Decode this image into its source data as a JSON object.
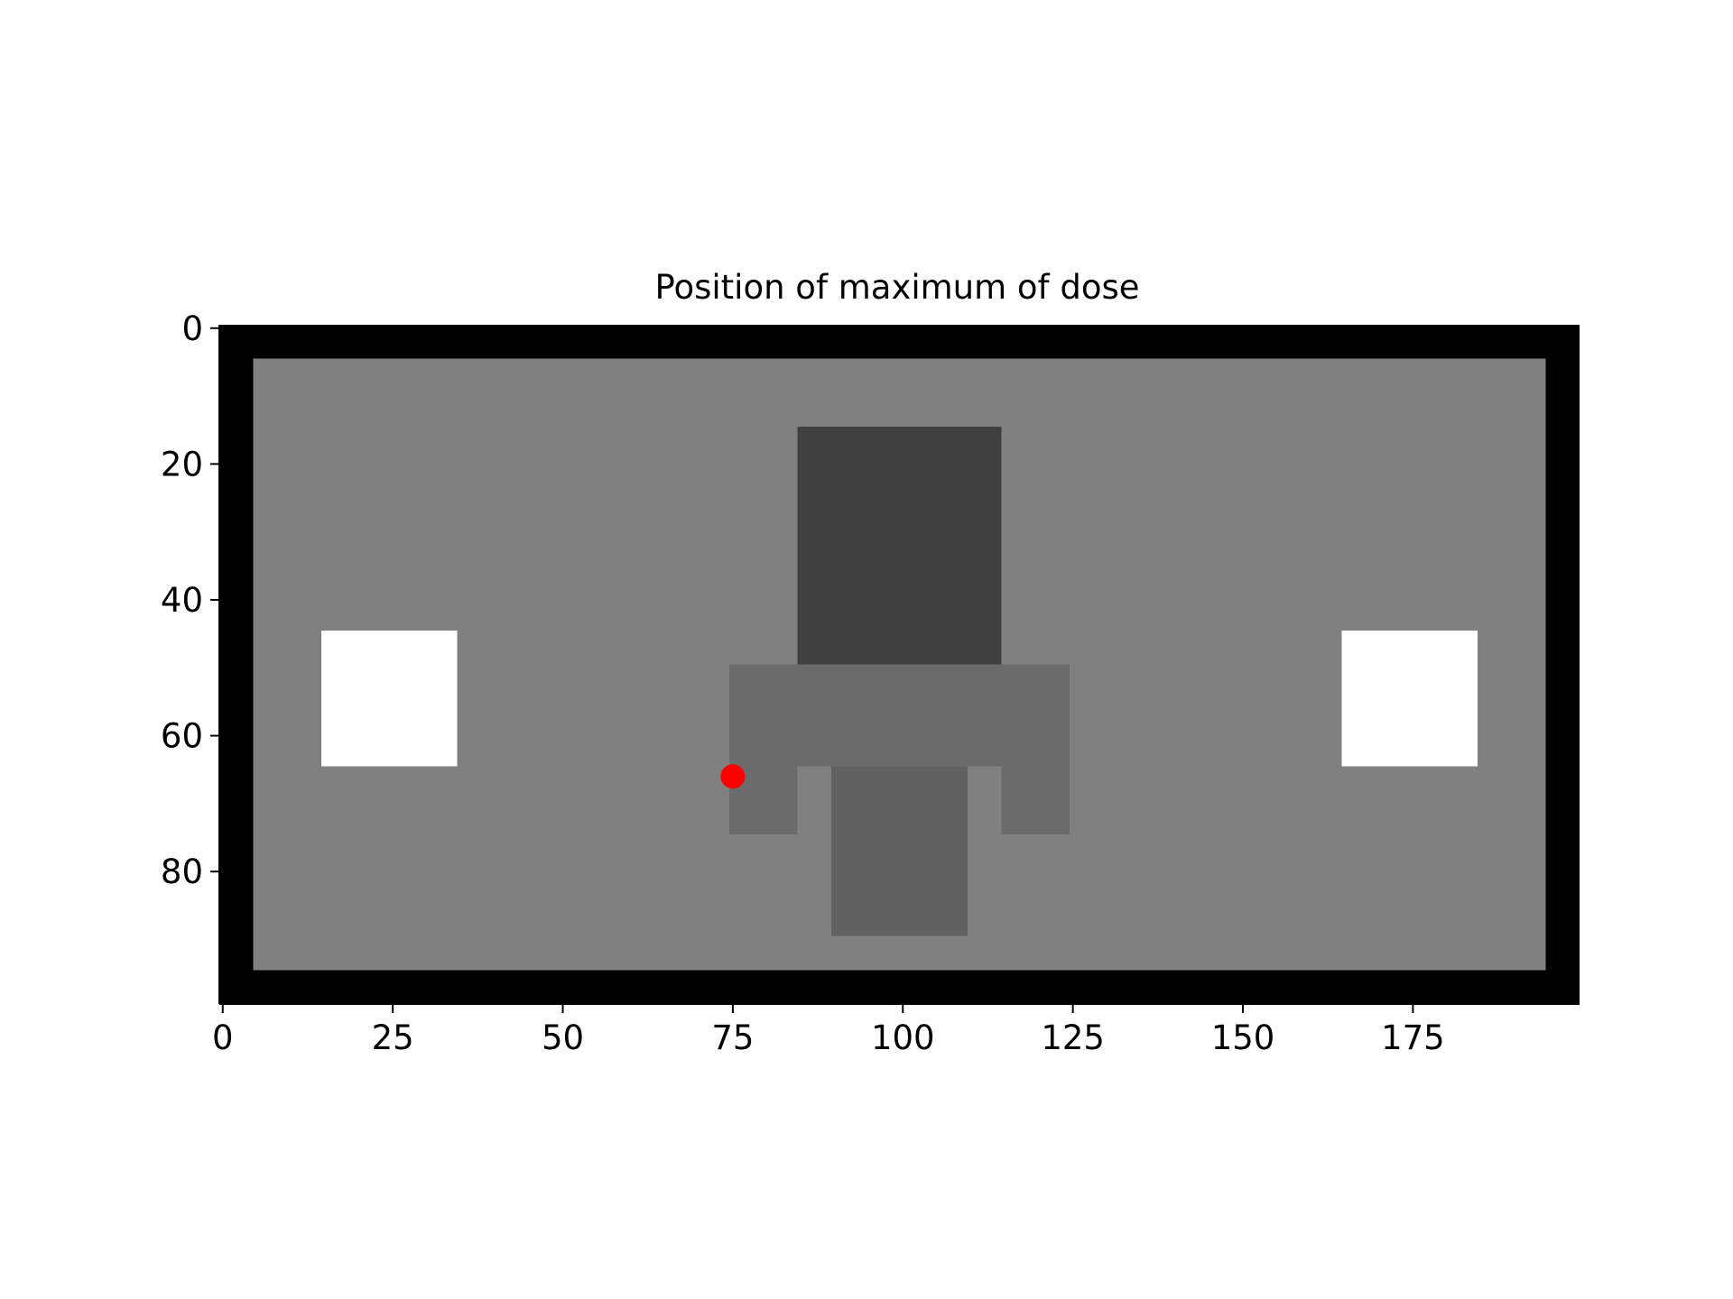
{
  "chart_data": {
    "type": "heatmap",
    "title": "Position of maximum of dose",
    "xlabel": "",
    "ylabel": "",
    "grid": false,
    "xlim": [
      -0.5,
      199.5
    ],
    "ylim": [
      99.5,
      -0.5
    ],
    "y_inverted": true,
    "x_ticks": [
      0,
      25,
      50,
      75,
      100,
      125,
      150,
      175
    ],
    "y_ticks": [
      0,
      20,
      40,
      60,
      80
    ],
    "colormap": "gray",
    "regions": [
      {
        "name": "border",
        "x0": 0,
        "x1": 199,
        "y0": 0,
        "y1": 99,
        "level": 0.0
      },
      {
        "name": "body",
        "x0": 5,
        "x1": 194,
        "y0": 5,
        "y1": 94,
        "level": 0.5
      },
      {
        "name": "upper-block",
        "x0": 85,
        "x1": 114,
        "y0": 15,
        "y1": 49,
        "level": 0.25
      },
      {
        "name": "middle-bar",
        "x0": 75,
        "x1": 124,
        "y0": 50,
        "y1": 64,
        "level": 0.42
      },
      {
        "name": "left-leg",
        "x0": 75,
        "x1": 84,
        "y0": 65,
        "y1": 74,
        "level": 0.42
      },
      {
        "name": "right-leg",
        "x0": 115,
        "x1": 124,
        "y0": 65,
        "y1": 74,
        "level": 0.42
      },
      {
        "name": "lower-block",
        "x0": 90,
        "x1": 109,
        "y0": 65,
        "y1": 89,
        "level": 0.38
      },
      {
        "name": "left-insert",
        "x0": 15,
        "x1": 34,
        "y0": 45,
        "y1": 64,
        "level": 1.0
      },
      {
        "name": "right-insert",
        "x0": 165,
        "x1": 184,
        "y0": 45,
        "y1": 64,
        "level": 1.0
      }
    ],
    "marker": {
      "x": 75,
      "y": 66,
      "color": "#ff0000"
    }
  }
}
